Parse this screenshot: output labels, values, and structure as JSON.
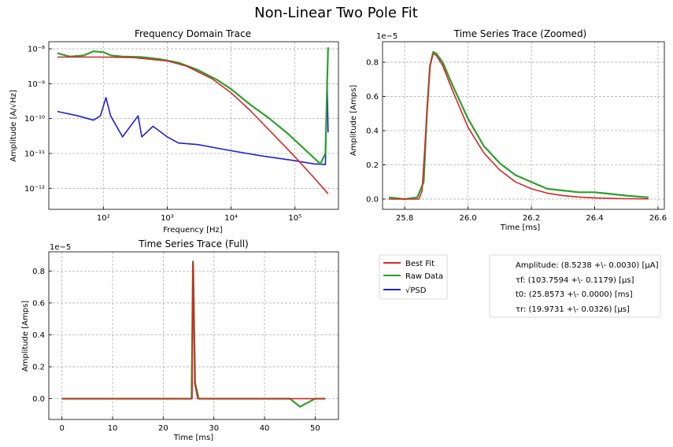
{
  "figure": {
    "title": "Non-Linear Two Pole Fit"
  },
  "colors": {
    "fit": "#d62728",
    "raw": "#2ca02c",
    "psd": "#1f1fd6"
  },
  "chart_data": [
    {
      "id": "freq",
      "type": "line",
      "title": "Frequency Domain Trace",
      "xlabel": "Frequency [Hz]",
      "ylabel": "Amplitude [A/√Hz]",
      "xscale": "log",
      "yscale": "log",
      "xlim": [
        14,
        480000
      ],
      "ylim": [
        2.5e-13,
        1.6e-08
      ],
      "xticks": [
        {
          "v": 100,
          "l": "10²"
        },
        {
          "v": 1000,
          "l": "10³"
        },
        {
          "v": 10000,
          "l": "10⁴"
        },
        {
          "v": 100000,
          "l": "10⁵"
        }
      ],
      "yticks": [
        {
          "v": 1e-12,
          "l": "10⁻¹²"
        },
        {
          "v": 1e-11,
          "l": "10⁻¹¹"
        },
        {
          "v": 1e-10,
          "l": "10⁻¹⁰"
        },
        {
          "v": 1e-09,
          "l": "10⁻⁹"
        },
        {
          "v": 1e-08,
          "l": "10⁻⁸"
        }
      ],
      "grid": true,
      "series": [
        {
          "name": "Raw Data",
          "role": "raw",
          "x": [
            19,
            30,
            50,
            70,
            100,
            130,
            200,
            400,
            800,
            1500,
            3000,
            6000,
            10000,
            20000,
            40000,
            80000,
            150000,
            250000,
            300000,
            330000
          ],
          "y": [
            7.5e-09,
            6e-09,
            6.5e-09,
            8.5e-09,
            8e-09,
            6.5e-09,
            6e-09,
            5.8e-09,
            5e-09,
            4e-09,
            2.5e-09,
            1.3e-09,
            7e-10,
            2.5e-10,
            1e-10,
            3.5e-11,
            1.2e-11,
            5e-12,
            1e-11,
            1.1e-08
          ]
        },
        {
          "name": "√PSD",
          "role": "psd",
          "x": [
            19,
            40,
            70,
            90,
            110,
            130,
            200,
            350,
            400,
            600,
            1000,
            1500,
            3000,
            10000,
            30000,
            100000,
            200000,
            300000,
            320000,
            330000
          ],
          "y": [
            1.6e-10,
            1.2e-10,
            9e-11,
            1.2e-10,
            4e-10,
            1.2e-10,
            3e-11,
            1.2e-10,
            3e-11,
            6e-11,
            3e-11,
            2e-11,
            1.8e-11,
            1.2e-11,
            8.5e-12,
            6.2e-12,
            5e-12,
            4.8e-12,
            1e-09,
            4e-11
          ]
        },
        {
          "name": "Best Fit",
          "role": "fit",
          "x": [
            19,
            100,
            300,
            1000,
            2000,
            5000,
            10000,
            20000,
            50000,
            100000,
            200000,
            330000
          ],
          "y": [
            5.8e-09,
            5.8e-09,
            5.6e-09,
            4.5e-09,
            3.2e-09,
            1.4e-09,
            5.5e-10,
            1.7e-10,
            3e-11,
            8e-12,
            2e-12,
            7e-13
          ]
        }
      ]
    },
    {
      "id": "zoom",
      "type": "line",
      "title": "Time Series Trace (Zoomed)",
      "xlabel": "Time [ms]",
      "ylabel": "Amplitude [Amps]",
      "offset_label": "1e−5",
      "xlim": [
        25.73,
        26.62
      ],
      "ylim": [
        -0.06,
        0.92
      ],
      "xticks": [
        {
          "v": 25.8,
          "l": "25.8"
        },
        {
          "v": 26.0,
          "l": "26.0"
        },
        {
          "v": 26.2,
          "l": "26.2"
        },
        {
          "v": 26.4,
          "l": "26.4"
        },
        {
          "v": 26.6,
          "l": "26.6"
        }
      ],
      "yticks": [
        {
          "v": 0,
          "l": "0.0"
        },
        {
          "v": 0.2,
          "l": "0.2"
        },
        {
          "v": 0.4,
          "l": "0.4"
        },
        {
          "v": 0.6,
          "l": "0.6"
        },
        {
          "v": 0.8,
          "l": "0.8"
        }
      ],
      "grid": true,
      "series": [
        {
          "name": "Raw Data",
          "role": "raw",
          "x": [
            25.75,
            25.8,
            25.84,
            25.86,
            25.87,
            25.88,
            25.89,
            25.9,
            25.92,
            25.95,
            26.0,
            26.05,
            26.1,
            26.15,
            26.2,
            26.25,
            26.3,
            26.35,
            26.4,
            26.45,
            26.5,
            26.57
          ],
          "y": [
            0.01,
            0.0,
            0.01,
            0.1,
            0.5,
            0.78,
            0.86,
            0.85,
            0.8,
            0.67,
            0.47,
            0.31,
            0.21,
            0.14,
            0.1,
            0.06,
            0.05,
            0.04,
            0.04,
            0.03,
            0.02,
            0.01
          ]
        },
        {
          "name": "Best Fit",
          "role": "fit",
          "x": [
            25.75,
            25.8,
            25.845,
            25.855,
            25.87,
            25.88,
            25.89,
            25.9,
            25.92,
            25.95,
            26.0,
            26.05,
            26.1,
            26.15,
            26.2,
            26.25,
            26.3,
            26.35,
            26.4,
            26.45,
            26.5,
            26.57
          ],
          "y": [
            0.0,
            0.0,
            0.0,
            0.05,
            0.5,
            0.78,
            0.85,
            0.84,
            0.78,
            0.64,
            0.42,
            0.27,
            0.17,
            0.1,
            0.06,
            0.035,
            0.02,
            0.012,
            0.007,
            0.004,
            0.002,
            0.001
          ]
        }
      ]
    },
    {
      "id": "full",
      "type": "line",
      "title": "Time Series Trace (Full)",
      "xlabel": "Time [ms]",
      "ylabel": "Amplitude [Amps]",
      "offset_label": "1e−5",
      "xlim": [
        -2.6,
        54.6
      ],
      "ylim": [
        -0.13,
        0.92
      ],
      "xticks": [
        {
          "v": 0,
          "l": "0"
        },
        {
          "v": 10,
          "l": "10"
        },
        {
          "v": 20,
          "l": "20"
        },
        {
          "v": 30,
          "l": "30"
        },
        {
          "v": 40,
          "l": "40"
        },
        {
          "v": 50,
          "l": "50"
        }
      ],
      "yticks": [
        {
          "v": 0,
          "l": "0.0"
        },
        {
          "v": 0.2,
          "l": "0.2"
        },
        {
          "v": 0.4,
          "l": "0.4"
        },
        {
          "v": 0.6,
          "l": "0.6"
        },
        {
          "v": 0.8,
          "l": "0.8"
        }
      ],
      "grid": true,
      "series": [
        {
          "name": "Raw Data",
          "role": "raw",
          "x": [
            0,
            5,
            10,
            15,
            20,
            25,
            25.6,
            25.86,
            25.9,
            26.3,
            27,
            30,
            35,
            40,
            45,
            47,
            50,
            52
          ],
          "y": [
            0.0,
            0.0,
            0.0,
            0.0,
            0.0,
            0.0,
            0.0,
            0.86,
            0.84,
            0.1,
            0.0,
            0.0,
            0.0,
            0.0,
            0.0,
            -0.05,
            0.0,
            0.0
          ]
        },
        {
          "name": "Best Fit",
          "role": "fit",
          "x": [
            0,
            25.7,
            25.86,
            25.9,
            26.2,
            26.8,
            52
          ],
          "y": [
            0.0,
            0.0,
            0.85,
            0.84,
            0.1,
            0.0,
            0.0
          ]
        }
      ]
    }
  ],
  "legend": {
    "items": [
      {
        "label": "Best Fit",
        "role": "fit"
      },
      {
        "label": "Raw Data",
        "role": "raw"
      },
      {
        "label": "√PSD",
        "role": "psd"
      }
    ]
  },
  "params": {
    "lines": [
      "Amplitude: (8.5238 +\\- 0.0030) [μA]",
      "τf: (103.7594 +\\- 0.1179) [μs]",
      "t0: (25.8573 +\\- 0.0000) [ms]",
      "τr: (19.9731 +\\- 0.0326) [μs]"
    ]
  }
}
